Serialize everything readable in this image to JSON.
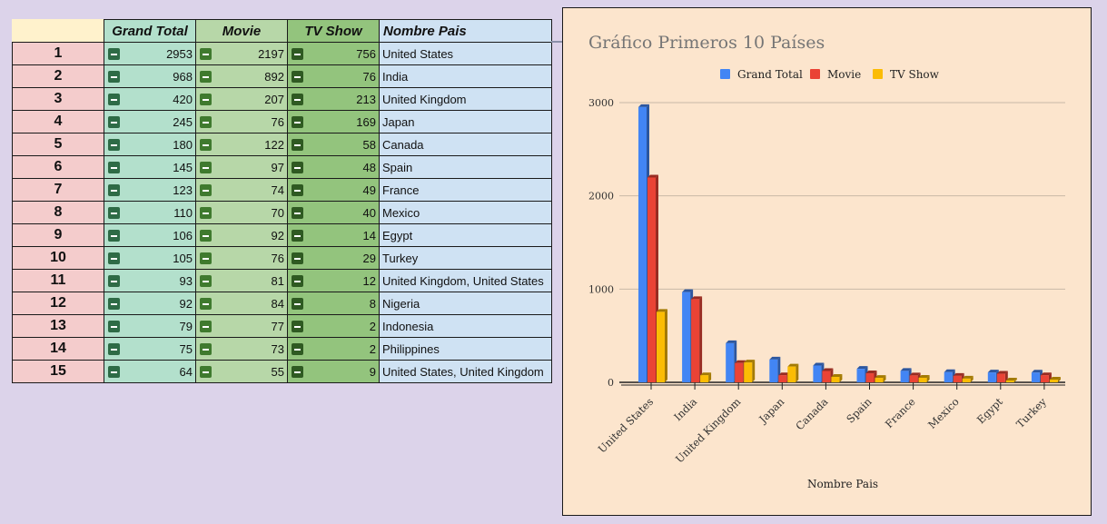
{
  "table": {
    "headers": {
      "rank": "",
      "grand_total": "Grand Total",
      "movie": "Movie",
      "tv_show": "TV Show",
      "country": "Nombre Pais"
    },
    "rows": [
      {
        "rank": "1",
        "grand_total": "2953",
        "movie": "2197",
        "tv_show": "756",
        "country": "United States"
      },
      {
        "rank": "2",
        "grand_total": "968",
        "movie": "892",
        "tv_show": "76",
        "country": "India"
      },
      {
        "rank": "3",
        "grand_total": "420",
        "movie": "207",
        "tv_show": "213",
        "country": "United Kingdom"
      },
      {
        "rank": "4",
        "grand_total": "245",
        "movie": "76",
        "tv_show": "169",
        "country": "Japan"
      },
      {
        "rank": "5",
        "grand_total": "180",
        "movie": "122",
        "tv_show": "58",
        "country": "Canada"
      },
      {
        "rank": "6",
        "grand_total": "145",
        "movie": "97",
        "tv_show": "48",
        "country": "Spain"
      },
      {
        "rank": "7",
        "grand_total": "123",
        "movie": "74",
        "tv_show": "49",
        "country": "France"
      },
      {
        "rank": "8",
        "grand_total": "110",
        "movie": "70",
        "tv_show": "40",
        "country": "Mexico"
      },
      {
        "rank": "9",
        "grand_total": "106",
        "movie": "92",
        "tv_show": "14",
        "country": "Egypt"
      },
      {
        "rank": "10",
        "grand_total": "105",
        "movie": "76",
        "tv_show": "29",
        "country": "Turkey"
      },
      {
        "rank": "11",
        "grand_total": "93",
        "movie": "81",
        "tv_show": "12",
        "country": "United Kingdom, United States"
      },
      {
        "rank": "12",
        "grand_total": "92",
        "movie": "84",
        "tv_show": "8",
        "country": "Nigeria"
      },
      {
        "rank": "13",
        "grand_total": "79",
        "movie": "77",
        "tv_show": "2",
        "country": "Indonesia"
      },
      {
        "rank": "14",
        "grand_total": "75",
        "movie": "73",
        "tv_show": "2",
        "country": "Philippines"
      },
      {
        "rank": "15",
        "grand_total": "64",
        "movie": "55",
        "tv_show": "9",
        "country": "United States, United Kingdom"
      }
    ],
    "collapse_icon": "minus-square-icon"
  },
  "chart_data": {
    "type": "bar",
    "title": "Gráfico Primeros 10 Países",
    "xlabel": "Nombre Pais",
    "ylabel": "",
    "categories": [
      "United States",
      "India",
      "United Kingdom",
      "Japan",
      "Canada",
      "Spain",
      "France",
      "Mexico",
      "Egypt",
      "Turkey"
    ],
    "series": [
      {
        "name": "Grand Total",
        "color": "#4285f4",
        "values": [
          2953,
          968,
          420,
          245,
          180,
          145,
          123,
          110,
          106,
          105
        ]
      },
      {
        "name": "Movie",
        "color": "#ea4335",
        "values": [
          2197,
          892,
          207,
          76,
          122,
          97,
          74,
          70,
          92,
          76
        ]
      },
      {
        "name": "TV Show",
        "color": "#fbbc04",
        "values": [
          756,
          76,
          213,
          169,
          58,
          48,
          49,
          40,
          14,
          29
        ]
      }
    ],
    "ylim": [
      0,
      3000
    ],
    "yticks": [
      0,
      1000,
      2000,
      3000
    ],
    "grid": true,
    "legend": "top-center",
    "style": "3d-bars"
  }
}
